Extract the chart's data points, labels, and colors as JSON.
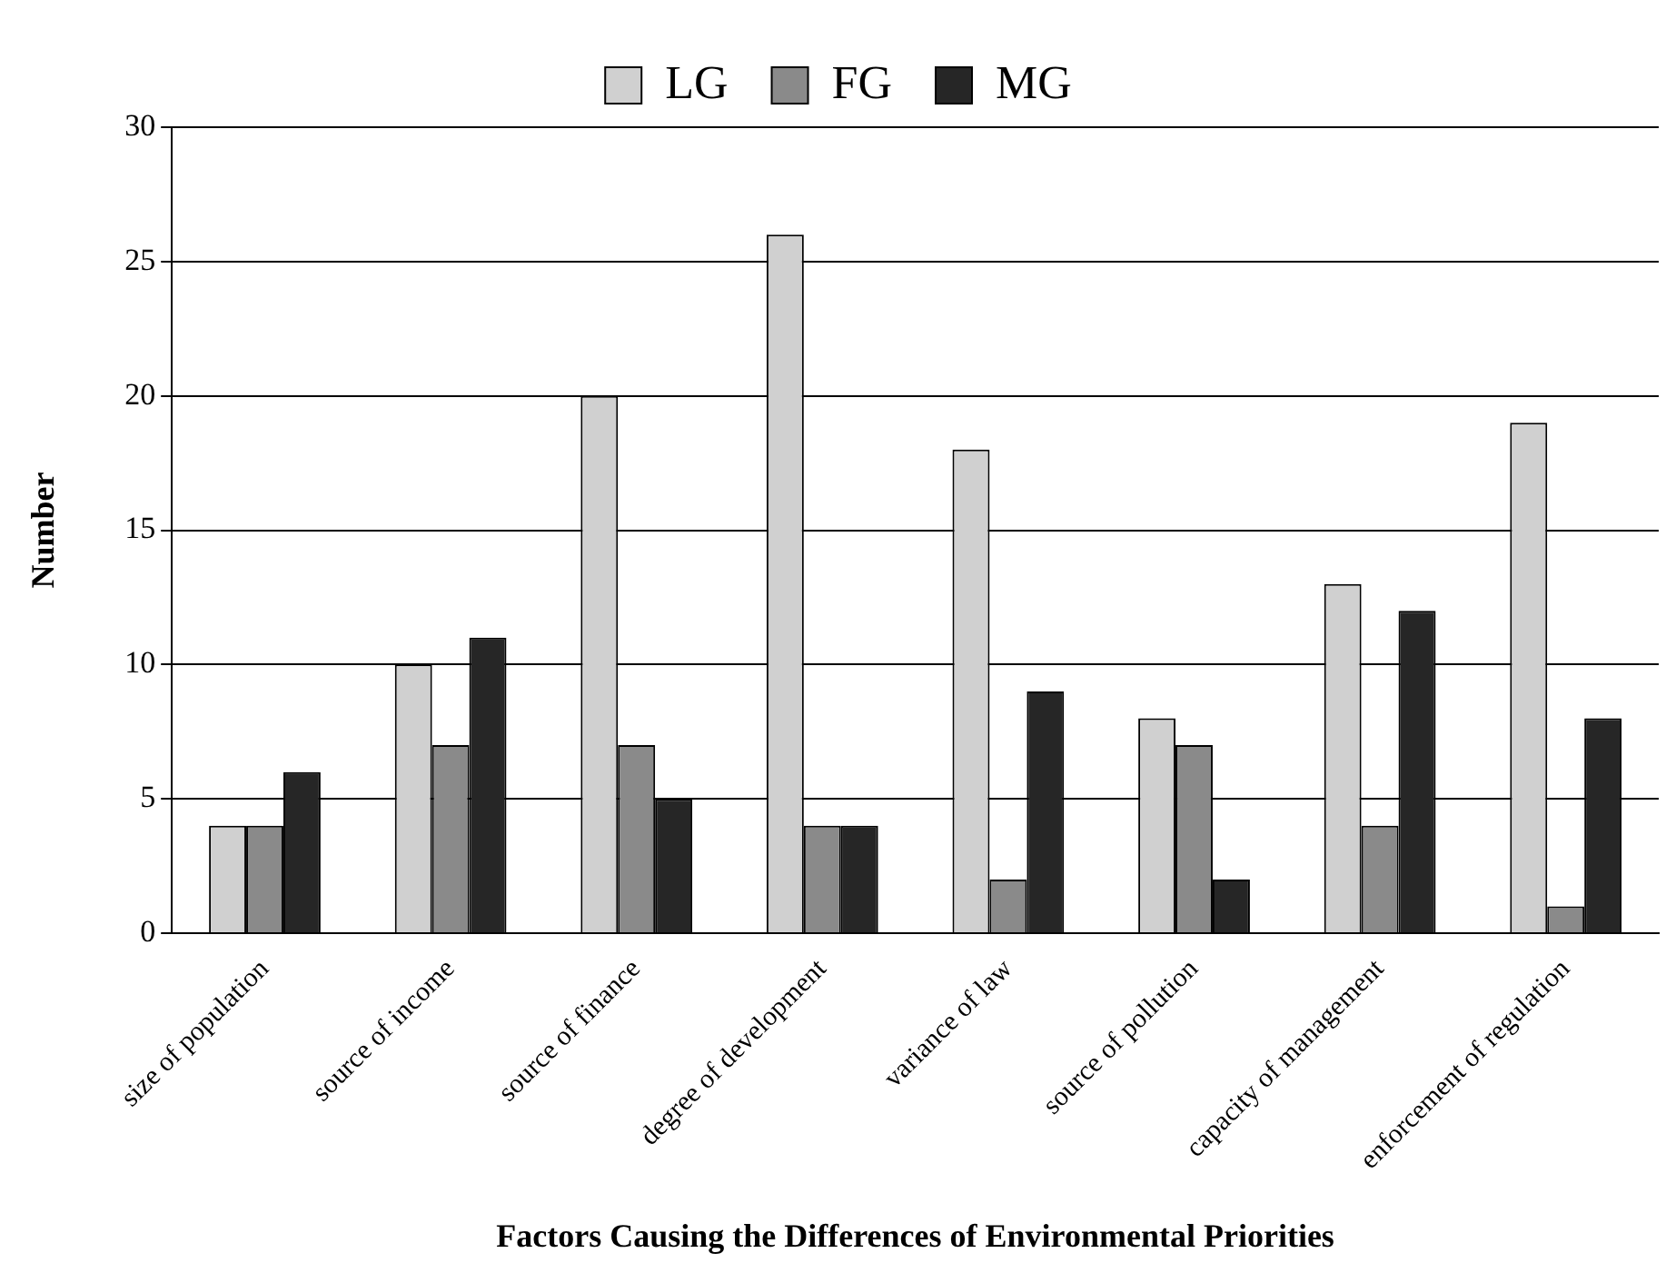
{
  "chart_data": {
    "type": "bar",
    "xlabel": "Factors Causing the Differences of Environmental Priorities",
    "ylabel": "Number",
    "categories": [
      "size of population",
      "source of income",
      "source of finance",
      "degree of development",
      "variance of law",
      "source of pollution",
      "capacity of management",
      "enforcement of regulation"
    ],
    "series": [
      {
        "name": "LG",
        "color": "#d0d0d0",
        "values": [
          4,
          10,
          20,
          26,
          18,
          8,
          13,
          19
        ]
      },
      {
        "name": "FG",
        "color": "#8a8a8a",
        "values": [
          4,
          7,
          7,
          4,
          2,
          7,
          4,
          1
        ]
      },
      {
        "name": "MG",
        "color": "#262626",
        "values": [
          6,
          11,
          5,
          4,
          9,
          2,
          12,
          8
        ]
      }
    ],
    "ylim": [
      0,
      30
    ],
    "yticks": [
      0,
      5,
      10,
      15,
      20,
      25,
      30
    ],
    "grid": "y",
    "legend": "top"
  }
}
